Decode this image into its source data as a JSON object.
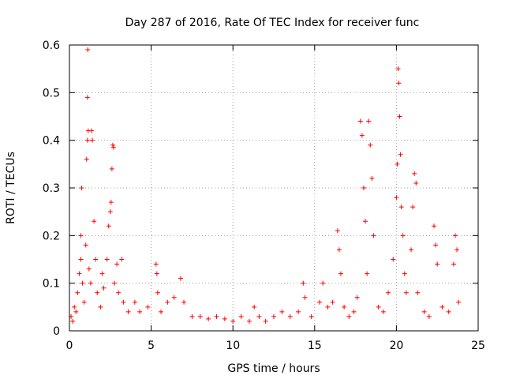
{
  "chart_data": {
    "type": "scatter",
    "title": "Day 287 of 2016, Rate Of TEC Index for receiver func",
    "xlabel": "GPS time / hours",
    "ylabel": "ROTI / TECUs",
    "xlim": [
      0,
      25
    ],
    "ylim": [
      0,
      0.6
    ],
    "xticks": [
      0,
      5,
      10,
      15,
      20,
      25
    ],
    "yticks": [
      0,
      0.1,
      0.2,
      0.3,
      0.4,
      0.5,
      0.6
    ],
    "ytick_labels": [
      "0",
      "0.1",
      "0.2",
      "0.3",
      "0.4",
      "0.5",
      "0.6"
    ],
    "xtick_labels": [
      "0",
      "5",
      "10",
      "15",
      "20",
      "25"
    ],
    "grid": true,
    "marker": "+",
    "series": [
      {
        "name": "ROTI",
        "color": "#ff0000",
        "points": [
          [
            0.1,
            0.03
          ],
          [
            0.2,
            0.02
          ],
          [
            0.3,
            0.05
          ],
          [
            0.4,
            0.04
          ],
          [
            0.5,
            0.08
          ],
          [
            0.6,
            0.12
          ],
          [
            0.7,
            0.15
          ],
          [
            0.7,
            0.2
          ],
          [
            0.75,
            0.3
          ],
          [
            0.8,
            0.1
          ],
          [
            0.9,
            0.06
          ],
          [
            1.0,
            0.18
          ],
          [
            1.05,
            0.36
          ],
          [
            1.1,
            0.4
          ],
          [
            1.1,
            0.49
          ],
          [
            1.12,
            0.59
          ],
          [
            1.15,
            0.42
          ],
          [
            1.2,
            0.13
          ],
          [
            1.3,
            0.1
          ],
          [
            1.35,
            0.42
          ],
          [
            1.4,
            0.4
          ],
          [
            1.5,
            0.23
          ],
          [
            1.6,
            0.15
          ],
          [
            1.7,
            0.08
          ],
          [
            1.9,
            0.05
          ],
          [
            2.0,
            0.12
          ],
          [
            2.1,
            0.09
          ],
          [
            2.3,
            0.15
          ],
          [
            2.4,
            0.22
          ],
          [
            2.5,
            0.25
          ],
          [
            2.55,
            0.27
          ],
          [
            2.6,
            0.34
          ],
          [
            2.65,
            0.39
          ],
          [
            2.7,
            0.385
          ],
          [
            2.75,
            0.1
          ],
          [
            2.9,
            0.14
          ],
          [
            3.0,
            0.08
          ],
          [
            3.2,
            0.15
          ],
          [
            3.3,
            0.06
          ],
          [
            3.6,
            0.04
          ],
          [
            4.0,
            0.06
          ],
          [
            4.3,
            0.04
          ],
          [
            4.8,
            0.05
          ],
          [
            5.3,
            0.14
          ],
          [
            5.35,
            0.12
          ],
          [
            5.4,
            0.08
          ],
          [
            5.6,
            0.04
          ],
          [
            6.0,
            0.06
          ],
          [
            6.4,
            0.07
          ],
          [
            6.8,
            0.11
          ],
          [
            7.0,
            0.06
          ],
          [
            7.5,
            0.03
          ],
          [
            8.0,
            0.03
          ],
          [
            8.5,
            0.025
          ],
          [
            9.0,
            0.03
          ],
          [
            9.5,
            0.025
          ],
          [
            10.0,
            0.02
          ],
          [
            10.5,
            0.03
          ],
          [
            11.0,
            0.02
          ],
          [
            11.3,
            0.05
          ],
          [
            11.6,
            0.03
          ],
          [
            12.0,
            0.02
          ],
          [
            12.5,
            0.03
          ],
          [
            13.0,
            0.04
          ],
          [
            13.5,
            0.03
          ],
          [
            14.0,
            0.04
          ],
          [
            14.3,
            0.1
          ],
          [
            14.4,
            0.07
          ],
          [
            14.8,
            0.03
          ],
          [
            15.3,
            0.06
          ],
          [
            15.5,
            0.1
          ],
          [
            15.8,
            0.05
          ],
          [
            16.1,
            0.06
          ],
          [
            16.4,
            0.21
          ],
          [
            16.5,
            0.17
          ],
          [
            16.6,
            0.12
          ],
          [
            16.8,
            0.05
          ],
          [
            17.1,
            0.03
          ],
          [
            17.4,
            0.04
          ],
          [
            17.6,
            0.07
          ],
          [
            17.8,
            0.44
          ],
          [
            17.9,
            0.41
          ],
          [
            18.0,
            0.3
          ],
          [
            18.1,
            0.23
          ],
          [
            18.2,
            0.12
          ],
          [
            18.3,
            0.44
          ],
          [
            18.4,
            0.39
          ],
          [
            18.5,
            0.32
          ],
          [
            18.6,
            0.2
          ],
          [
            18.9,
            0.05
          ],
          [
            19.2,
            0.04
          ],
          [
            19.5,
            0.08
          ],
          [
            19.8,
            0.15
          ],
          [
            20.0,
            0.28
          ],
          [
            20.05,
            0.35
          ],
          [
            20.1,
            0.55
          ],
          [
            20.15,
            0.52
          ],
          [
            20.2,
            0.45
          ],
          [
            20.25,
            0.37
          ],
          [
            20.3,
            0.26
          ],
          [
            20.4,
            0.2
          ],
          [
            20.5,
            0.12
          ],
          [
            20.6,
            0.08
          ],
          [
            20.9,
            0.17
          ],
          [
            21.0,
            0.26
          ],
          [
            21.1,
            0.33
          ],
          [
            21.2,
            0.31
          ],
          [
            21.3,
            0.08
          ],
          [
            21.7,
            0.04
          ],
          [
            22.0,
            0.03
          ],
          [
            22.3,
            0.22
          ],
          [
            22.4,
            0.18
          ],
          [
            22.5,
            0.14
          ],
          [
            22.8,
            0.05
          ],
          [
            23.2,
            0.04
          ],
          [
            23.5,
            0.14
          ],
          [
            23.6,
            0.2
          ],
          [
            23.7,
            0.17
          ],
          [
            23.8,
            0.06
          ]
        ]
      }
    ]
  }
}
